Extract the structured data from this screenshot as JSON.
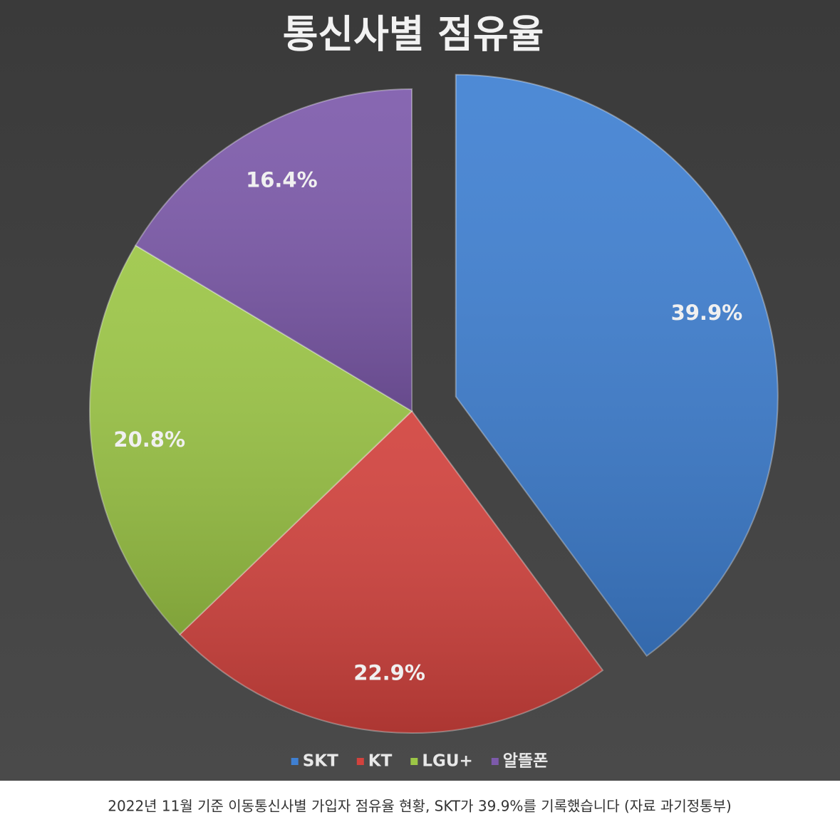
{
  "chart_data": {
    "type": "pie",
    "title": "통신사별 점유율",
    "categories": [
      "SKT",
      "KT",
      "LGU+",
      "알뜰폰"
    ],
    "values": [
      39.9,
      22.9,
      20.8,
      16.4
    ],
    "value_labels": [
      "39.9%",
      "22.9%",
      "20.8%",
      "16.4%"
    ],
    "colors": [
      "#3f80d2",
      "#d2423d",
      "#9cc646",
      "#7d5aab"
    ],
    "legend": "bottom",
    "caption": "2022년 11월 기준 이동통신사별 가입자 점유율 현황, SKT가 39.9%를 기록했습니다 (자료 과기정통부)"
  }
}
